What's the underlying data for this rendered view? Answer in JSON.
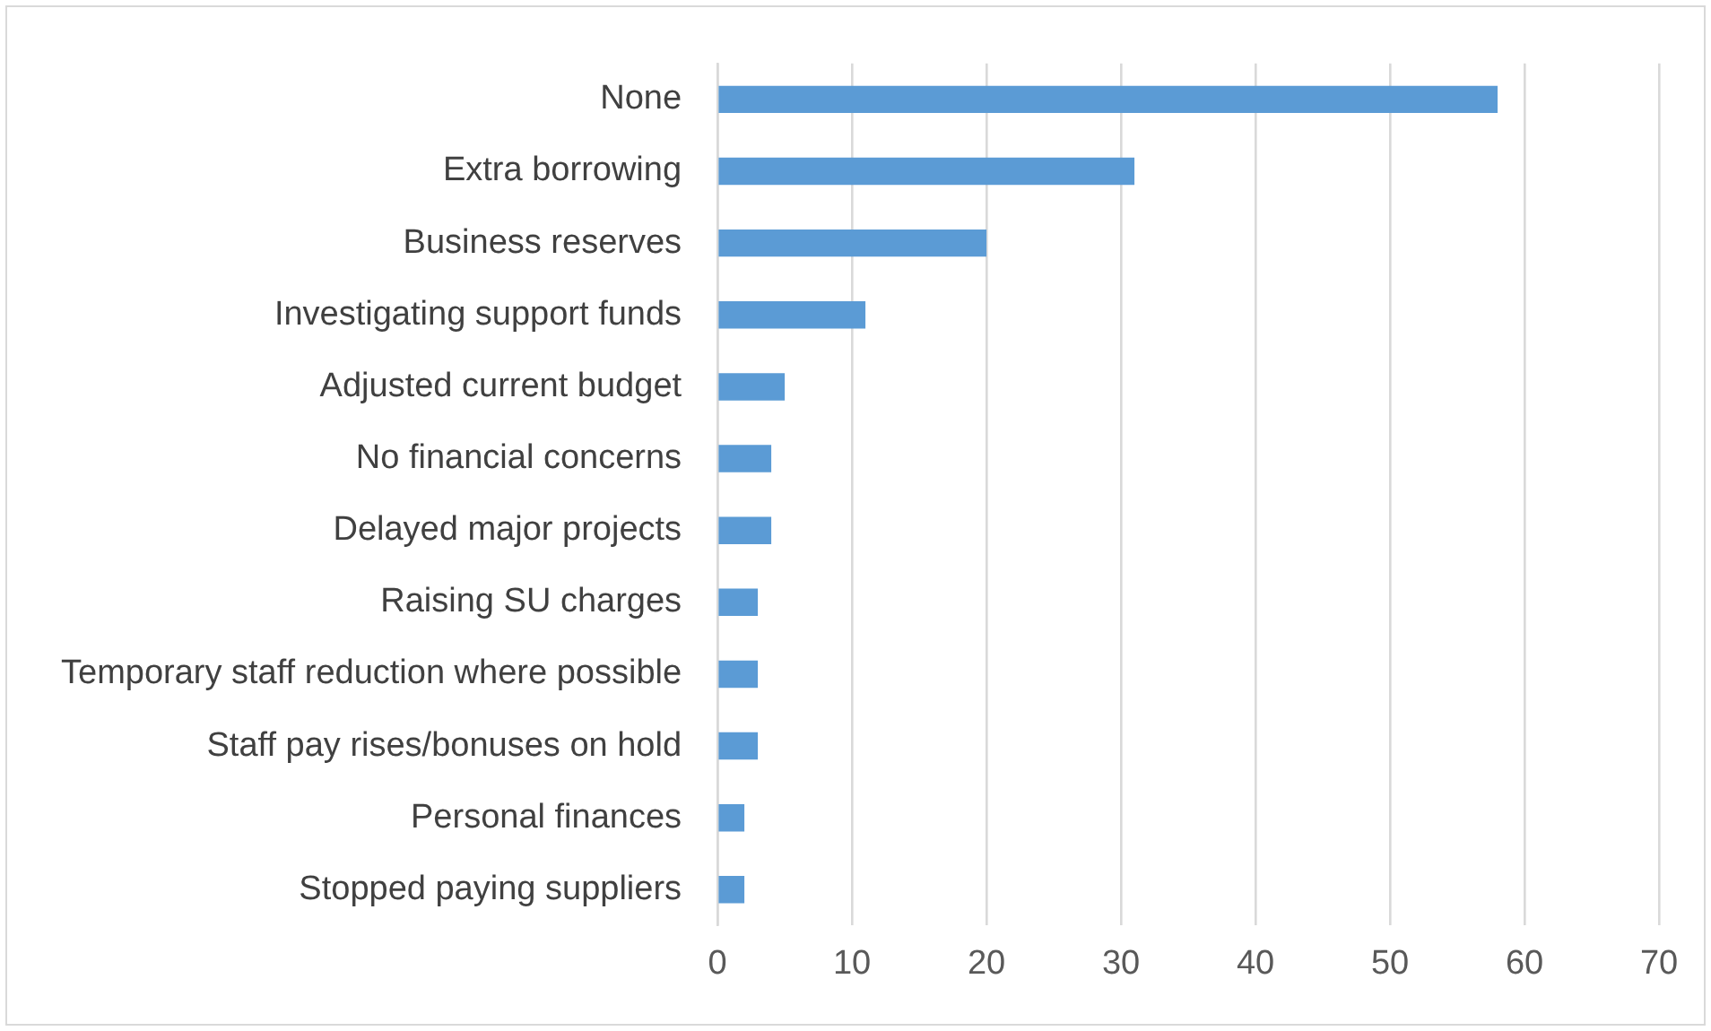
{
  "chart_data": {
    "type": "bar",
    "orientation": "horizontal",
    "categories": [
      "None",
      "Extra borrowing",
      "Business reserves",
      "Investigating support funds",
      "Adjusted current budget",
      "No financial concerns",
      "Delayed major projects",
      "Raising SU charges",
      "Temporary staff reduction where possible",
      "Staff pay rises/bonuses on hold",
      "Personal finances",
      "Stopped paying suppliers"
    ],
    "values": [
      58,
      31,
      20,
      11,
      5,
      4,
      4,
      3,
      3,
      3,
      2,
      2
    ],
    "color": "#5b9bd5",
    "xlim": [
      0,
      70
    ],
    "xticks": [
      0,
      10,
      20,
      30,
      40,
      50,
      60,
      70
    ],
    "grid": "x",
    "legend": false
  }
}
